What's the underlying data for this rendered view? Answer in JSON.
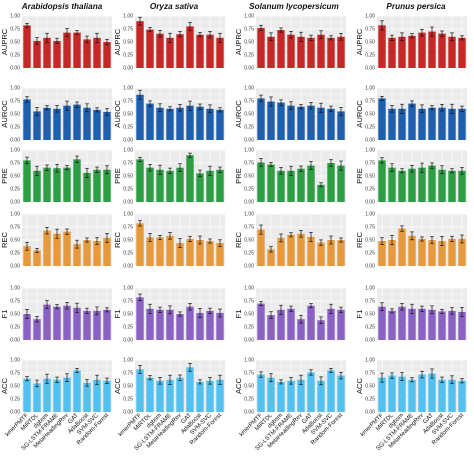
{
  "chart_data": {
    "type": "bar",
    "layout": "grid of panels: rows = metrics, columns = species",
    "columns": [
      "Arabidopsis thaliana",
      "Oryza sativa",
      "Solanum lycopersicum",
      "Prunus persica"
    ],
    "metrics": [
      "AUPRC",
      "AUROC",
      "PRE",
      "REC",
      "F1",
      "ACC"
    ],
    "metric_colors": [
      "#c62828",
      "#1f5fb0",
      "#2e9e44",
      "#e69a3c",
      "#8a62c4",
      "#53c1ef"
    ],
    "categories": [
      "kmerPMTF",
      "MiRTDL",
      "dgbsm",
      "SG-LSTM-FRAME",
      "MetaHeadingRev",
      "GAT",
      "AdaBoost",
      "SVM-SVC",
      "Random-Forest"
    ],
    "x_tick_labels": [
      "kmerPMTF",
      "MiRTDL",
      "dgbsm",
      "SG-LSTM-FRAME",
      "MetaHeadingRev",
      "GAT",
      "AdaBoost",
      "SVM-SVC",
      "Random-Forest"
    ],
    "yticks": [
      0.0,
      0.25,
      0.5,
      0.75,
      1.0
    ],
    "ytick_labels": [
      "0.00",
      "0.25",
      "0.50",
      "0.75",
      "1.00"
    ],
    "ylim": [
      0,
      1
    ],
    "grid": true,
    "error_bars": true,
    "panels": {
      "AUPRC": {
        "Arabidopsis thaliana": [
          0.82,
          0.52,
          0.58,
          0.52,
          0.68,
          0.68,
          0.55,
          0.58,
          0.5
        ],
        "Oryza sativa": [
          0.9,
          0.74,
          0.66,
          0.58,
          0.65,
          0.8,
          0.64,
          0.64,
          0.58
        ],
        "Solanum lycopersicum": [
          0.77,
          0.6,
          0.73,
          0.64,
          0.6,
          0.58,
          0.64,
          0.58,
          0.6
        ],
        "Prunus persica": [
          0.82,
          0.58,
          0.6,
          0.62,
          0.68,
          0.7,
          0.66,
          0.6,
          0.58
        ]
      },
      "AUROC": {
        "Arabidopsis thaliana": [
          0.78,
          0.55,
          0.62,
          0.6,
          0.66,
          0.68,
          0.62,
          0.58,
          0.54
        ],
        "Oryza sativa": [
          0.87,
          0.7,
          0.62,
          0.6,
          0.62,
          0.66,
          0.64,
          0.6,
          0.58
        ],
        "Solanum lycopersicum": [
          0.8,
          0.74,
          0.72,
          0.66,
          0.64,
          0.66,
          0.62,
          0.6,
          0.55
        ],
        "Prunus persica": [
          0.8,
          0.6,
          0.6,
          0.7,
          0.6,
          0.62,
          0.62,
          0.6,
          0.6
        ]
      },
      "PRE": {
        "Arabidopsis thaliana": [
          0.8,
          0.6,
          0.66,
          0.65,
          0.66,
          0.82,
          0.56,
          0.62,
          0.62
        ],
        "Oryza sativa": [
          0.82,
          0.66,
          0.62,
          0.6,
          0.66,
          0.9,
          0.55,
          0.6,
          0.62
        ],
        "Solanum lycopersicum": [
          0.76,
          0.72,
          0.6,
          0.6,
          0.64,
          0.7,
          0.33,
          0.75,
          0.7
        ],
        "Prunus persica": [
          0.8,
          0.66,
          0.6,
          0.64,
          0.66,
          0.7,
          0.62,
          0.6,
          0.6
        ]
      },
      "REC": {
        "Arabidopsis thaliana": [
          0.38,
          0.3,
          0.68,
          0.62,
          0.66,
          0.42,
          0.5,
          0.48,
          0.54
        ],
        "Oryza sativa": [
          0.82,
          0.55,
          0.55,
          0.58,
          0.44,
          0.52,
          0.5,
          0.48,
          0.44
        ],
        "Solanum lycopersicum": [
          0.7,
          0.32,
          0.54,
          0.6,
          0.62,
          0.56,
          0.45,
          0.5,
          0.5
        ],
        "Prunus persica": [
          0.48,
          0.5,
          0.72,
          0.58,
          0.52,
          0.5,
          0.48,
          0.52,
          0.52
        ]
      },
      "F1": {
        "Arabidopsis thaliana": [
          0.5,
          0.4,
          0.68,
          0.64,
          0.66,
          0.62,
          0.56,
          0.56,
          0.58
        ],
        "Oryza sativa": [
          0.82,
          0.6,
          0.58,
          0.58,
          0.5,
          0.64,
          0.52,
          0.56,
          0.52
        ],
        "Solanum lycopersicum": [
          0.7,
          0.48,
          0.58,
          0.6,
          0.4,
          0.66,
          0.38,
          0.6,
          0.58
        ],
        "Prunus persica": [
          0.64,
          0.56,
          0.64,
          0.6,
          0.6,
          0.58,
          0.55,
          0.56,
          0.54
        ]
      },
      "ACC": {
        "Arabidopsis thaliana": [
          0.64,
          0.55,
          0.64,
          0.62,
          0.66,
          0.8,
          0.56,
          0.62,
          0.6
        ],
        "Oryza sativa": [
          0.82,
          0.66,
          0.6,
          0.62,
          0.66,
          0.86,
          0.58,
          0.6,
          0.62
        ],
        "Solanum lycopersicum": [
          0.72,
          0.66,
          0.58,
          0.6,
          0.62,
          0.76,
          0.6,
          0.8,
          0.7
        ],
        "Prunus persica": [
          0.66,
          0.7,
          0.68,
          0.62,
          0.72,
          0.74,
          0.62,
          0.62,
          0.6
        ]
      }
    }
  }
}
